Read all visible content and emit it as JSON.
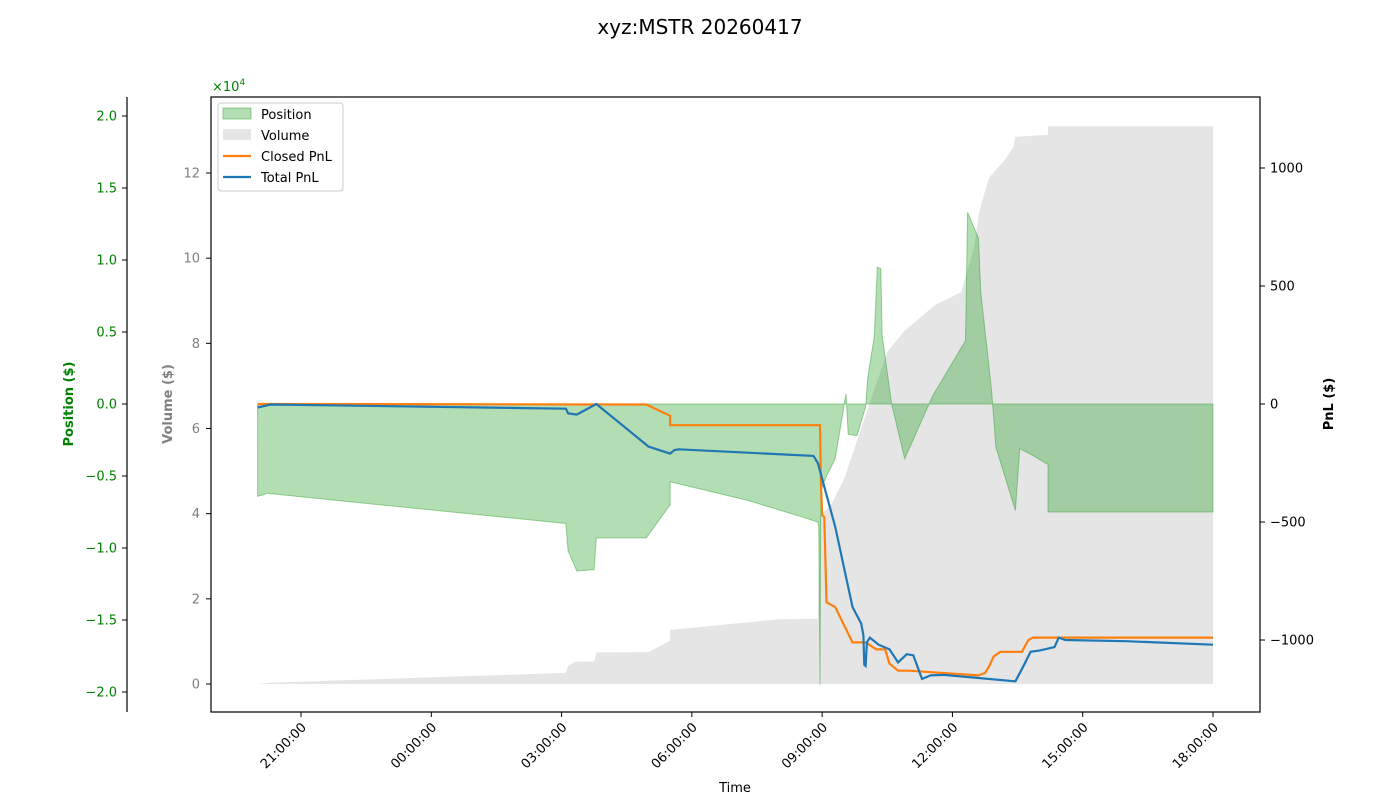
{
  "chart_data": {
    "type": "area",
    "title": "xyz:MSTR 20260417",
    "xlabel": "Time",
    "x_ticks": [
      "21:00:00",
      "00:00:00",
      "03:00:00",
      "06:00:00",
      "09:00:00",
      "12:00:00",
      "15:00:00",
      "18:00:00"
    ],
    "x_range_hours": [
      19.0,
      42.1
    ],
    "axes": {
      "position": {
        "label": "Position ($)",
        "color": "#008000",
        "ticks": [
          "2.0",
          "1.5",
          "1.0",
          "0.5",
          "0.0",
          "−0.5",
          "−1.0",
          "−1.5",
          "−2.0"
        ],
        "tick_values": [
          2.0,
          1.5,
          1.0,
          0.5,
          0.0,
          -0.5,
          -1.0,
          -1.5,
          -2.0
        ],
        "multiplier": "×10",
        "multiplier_exp": "4",
        "ylim": [
          -2.15,
          2.15
        ]
      },
      "volume": {
        "label": "Volume ($)",
        "color": "#808080",
        "ticks": [
          "12",
          "10",
          "8",
          "6",
          "4",
          "2",
          "0"
        ],
        "tick_values": [
          12,
          10,
          8,
          6,
          4,
          2,
          0
        ],
        "ylim": [
          -0.6,
          13.4
        ]
      },
      "pnl": {
        "label": "PnL ($)",
        "color": "#000000",
        "ticks": [
          "1000",
          "500",
          "0",
          "−500",
          "−1000"
        ],
        "tick_values": [
          1000,
          500,
          0,
          -500,
          -1000
        ],
        "ylim": [
          -1300,
          1300
        ]
      }
    },
    "legend": {
      "position": "upper left",
      "entries": [
        {
          "label": "Position",
          "kind": "patch",
          "color": "#7fc97f"
        },
        {
          "label": "Volume",
          "kind": "patch",
          "color": "#d3d3d3"
        },
        {
          "label": "Closed PnL",
          "kind": "line",
          "color": "#ff7f0e"
        },
        {
          "label": "Total PnL",
          "kind": "line",
          "color": "#1f77b4"
        }
      ]
    },
    "series": [
      {
        "name": "Position",
        "unit": "x1e4 $",
        "kind": "fill_between_zero",
        "color": "#2ca02c",
        "points": [
          [
            20.0,
            -0.64
          ],
          [
            20.15,
            -0.63
          ],
          [
            20.2,
            -0.62
          ],
          [
            27.1,
            -0.83
          ],
          [
            27.15,
            -1.02
          ],
          [
            27.35,
            -1.16
          ],
          [
            27.75,
            -1.15
          ],
          [
            27.8,
            -0.93
          ],
          [
            28.95,
            -0.93
          ],
          [
            29.5,
            -0.7
          ],
          [
            29.5,
            -0.54
          ],
          [
            31.3,
            -0.67
          ],
          [
            32.6,
            -0.79
          ],
          [
            32.9,
            -0.82
          ],
          [
            32.92,
            -0.85
          ],
          [
            32.95,
            -1.95
          ],
          [
            32.97,
            -0.6
          ],
          [
            33.1,
            -0.5
          ],
          [
            33.3,
            -0.38
          ],
          [
            33.55,
            0.07
          ],
          [
            33.6,
            -0.21
          ],
          [
            33.8,
            -0.22
          ],
          [
            34.0,
            -0.02
          ],
          [
            34.05,
            0.18
          ],
          [
            34.2,
            0.47
          ],
          [
            34.27,
            0.95
          ],
          [
            34.35,
            0.94
          ],
          [
            34.38,
            0.48
          ],
          [
            34.6,
            0.0
          ],
          [
            34.9,
            -0.38
          ],
          [
            35.55,
            0.06
          ],
          [
            36.3,
            0.44
          ],
          [
            36.35,
            1.33
          ],
          [
            36.6,
            1.15
          ],
          [
            36.65,
            0.78
          ],
          [
            36.9,
            0.1
          ],
          [
            37.0,
            -0.3
          ],
          [
            37.45,
            -0.74
          ],
          [
            37.55,
            -0.31
          ],
          [
            37.75,
            -0.34
          ],
          [
            38.2,
            -0.42
          ],
          [
            38.2,
            -0.75
          ],
          [
            42.0,
            -0.75
          ],
          [
            42.0,
            0.0
          ]
        ]
      },
      {
        "name": "Volume",
        "unit": "x1e4 $",
        "kind": "fill_below",
        "color": "#d3d3d3",
        "points": [
          [
            20.0,
            0.0
          ],
          [
            20.3,
            0.03
          ],
          [
            27.1,
            0.26
          ],
          [
            27.15,
            0.42
          ],
          [
            27.3,
            0.52
          ],
          [
            27.75,
            0.53
          ],
          [
            27.8,
            0.74
          ],
          [
            29.0,
            0.75
          ],
          [
            29.5,
            1.02
          ],
          [
            29.5,
            1.27
          ],
          [
            32.0,
            1.52
          ],
          [
            32.9,
            1.53
          ],
          [
            32.95,
            3.95
          ],
          [
            33.2,
            4.2
          ],
          [
            33.5,
            4.8
          ],
          [
            33.9,
            6.0
          ],
          [
            34.5,
            7.8
          ],
          [
            34.9,
            8.3
          ],
          [
            35.6,
            8.9
          ],
          [
            36.2,
            9.2
          ],
          [
            36.5,
            10.25
          ],
          [
            36.6,
            11.0
          ],
          [
            36.7,
            11.4
          ],
          [
            36.85,
            11.9
          ],
          [
            37.2,
            12.3
          ],
          [
            37.4,
            12.6
          ],
          [
            37.45,
            12.85
          ],
          [
            38.2,
            12.9
          ],
          [
            38.2,
            13.1
          ],
          [
            42.0,
            13.1
          ]
        ]
      },
      {
        "name": "Closed PnL",
        "unit": "$",
        "kind": "line",
        "color": "#ff7f0e",
        "points": [
          [
            20.0,
            0
          ],
          [
            28.95,
            -2
          ],
          [
            29.5,
            -50
          ],
          [
            29.5,
            -90
          ],
          [
            32.95,
            -90
          ],
          [
            32.97,
            -310
          ],
          [
            33.0,
            -470
          ],
          [
            33.05,
            -480
          ],
          [
            33.1,
            -840
          ],
          [
            33.3,
            -860
          ],
          [
            33.7,
            -1010
          ],
          [
            34.0,
            -1010
          ],
          [
            34.25,
            -1040
          ],
          [
            34.45,
            -1040
          ],
          [
            34.55,
            -1100
          ],
          [
            34.75,
            -1130
          ],
          [
            35.0,
            -1130
          ],
          [
            36.6,
            -1150
          ],
          [
            36.75,
            -1140
          ],
          [
            36.85,
            -1110
          ],
          [
            36.95,
            -1070
          ],
          [
            37.1,
            -1050
          ],
          [
            37.6,
            -1050
          ],
          [
            37.75,
            -1000
          ],
          [
            37.85,
            -990
          ],
          [
            42.0,
            -990
          ]
        ]
      },
      {
        "name": "Total PnL",
        "unit": "$",
        "kind": "line",
        "color": "#1f77b4",
        "points": [
          [
            20.0,
            -15
          ],
          [
            20.3,
            -2
          ],
          [
            27.1,
            -20
          ],
          [
            27.15,
            -40
          ],
          [
            27.35,
            -45
          ],
          [
            27.8,
            0
          ],
          [
            29.0,
            -180
          ],
          [
            29.5,
            -210
          ],
          [
            29.6,
            -195
          ],
          [
            29.7,
            -192
          ],
          [
            32.8,
            -220
          ],
          [
            32.9,
            -250
          ],
          [
            33.3,
            -520
          ],
          [
            33.7,
            -860
          ],
          [
            33.9,
            -930
          ],
          [
            33.95,
            -980
          ],
          [
            33.97,
            -1105
          ],
          [
            34.0,
            -1110
          ],
          [
            34.03,
            -1010
          ],
          [
            34.1,
            -990
          ],
          [
            34.3,
            -1020
          ],
          [
            34.55,
            -1040
          ],
          [
            34.75,
            -1095
          ],
          [
            34.95,
            -1060
          ],
          [
            35.1,
            -1065
          ],
          [
            35.3,
            -1165
          ],
          [
            35.5,
            -1150
          ],
          [
            35.8,
            -1148
          ],
          [
            37.45,
            -1175
          ],
          [
            37.65,
            -1105
          ],
          [
            37.8,
            -1050
          ],
          [
            38.0,
            -1045
          ],
          [
            38.35,
            -1030
          ],
          [
            38.45,
            -990
          ],
          [
            38.6,
            -1000
          ],
          [
            40.0,
            -1005
          ],
          [
            42.0,
            -1020
          ]
        ]
      }
    ]
  }
}
